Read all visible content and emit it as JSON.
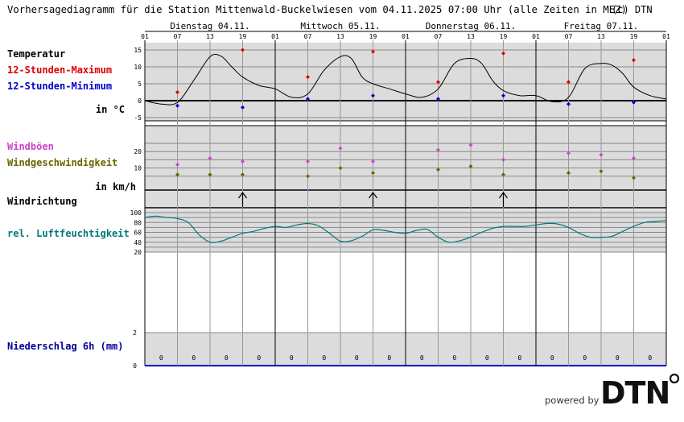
{
  "page_title": "Vorhersagediagramm für die Station Mittenwald-Buckelwiesen vom 04.11.2025 07:00 Uhr (alle Zeiten in MEZ)",
  "copyright": "(c) DTN",
  "powered_by": "powered by",
  "logo_text": "DTN",
  "colors": {
    "temp": "#000000",
    "max": "#dd0000",
    "min": "#0000cc",
    "gust": "#cc44cc",
    "wind": "#666600",
    "humidity": "#007a7a",
    "precip": "#000099",
    "panel_bg": "#dcdcdc"
  },
  "labels": {
    "temperatur": "Temperatur",
    "max": "12-Stunden-Maximum",
    "min": "12-Stunden-Minimum",
    "temp_unit": "in °C",
    "gust": "Windböen",
    "wind": "Windgeschwindigkeit",
    "wind_unit": "in km/h",
    "winddir": "Windrichtung",
    "humidity": "rel. Luftfeuchtigkeit",
    "precip": "Niederschlag 6h (mm)"
  },
  "chart_data": {
    "type": "line",
    "days": [
      "Dienstag 04.11.",
      "Mittwoch 05.11.",
      "Donnerstag 06.11.",
      "Freitag 07.11."
    ],
    "hour_ticks": [
      "01",
      "07",
      "13",
      "19",
      "01",
      "07",
      "13",
      "19",
      "01",
      "07",
      "13",
      "19",
      "01",
      "07",
      "13",
      "19",
      "01"
    ],
    "temperature": {
      "ylim": [
        -5,
        15
      ],
      "yticks": [
        "15",
        "10",
        "5",
        "0",
        "-5"
      ],
      "hourly": {
        "hours": [
          0,
          3,
          6,
          9,
          12,
          14,
          16,
          18,
          21,
          24,
          27,
          30,
          33,
          36,
          38,
          40,
          42,
          45,
          48,
          51,
          54,
          57,
          60,
          62,
          64,
          66,
          69,
          72,
          75,
          78,
          81,
          84,
          86,
          88,
          90,
          93,
          96
        ],
        "values": [
          0,
          -1,
          -0.5,
          6,
          13,
          13.2,
          10,
          7,
          4.5,
          3.5,
          1,
          2,
          9,
          13,
          12.5,
          7,
          5,
          3.5,
          2,
          1,
          3.5,
          11,
          12.5,
          11,
          6,
          3,
          1.5,
          1.5,
          -0.3,
          1,
          9.5,
          11,
          10.5,
          8,
          4,
          1.5,
          0.5
        ]
      },
      "max12h": [
        {
          "x": 6,
          "v": 2.5
        },
        {
          "x": 18,
          "v": 15
        },
        {
          "x": 30,
          "v": 7
        },
        {
          "x": 42,
          "v": 14.5
        },
        {
          "x": 54,
          "v": 5.5
        },
        {
          "x": 66,
          "v": 14
        },
        {
          "x": 78,
          "v": 5.5
        },
        {
          "x": 90,
          "v": 12
        }
      ],
      "min12h": [
        {
          "x": 6,
          "v": -1.5
        },
        {
          "x": 18,
          "v": -2
        },
        {
          "x": 30,
          "v": 0.5
        },
        {
          "x": 42,
          "v": 1.5
        },
        {
          "x": 54,
          "v": 0.5
        },
        {
          "x": 66,
          "v": 1.5
        },
        {
          "x": 78,
          "v": -1
        },
        {
          "x": 90,
          "v": -0.5
        }
      ]
    },
    "wind": {
      "ylim": [
        0,
        30
      ],
      "yticks": [
        "20",
        "10"
      ],
      "gusts": [
        {
          "x": 6,
          "v": 12
        },
        {
          "x": 12,
          "v": 16
        },
        {
          "x": 18,
          "v": 14
        },
        {
          "x": 30,
          "v": 14
        },
        {
          "x": 36,
          "v": 22
        },
        {
          "x": 42,
          "v": 14
        },
        {
          "x": 54,
          "v": 21
        },
        {
          "x": 60,
          "v": 24
        },
        {
          "x": 66,
          "v": 15
        },
        {
          "x": 78,
          "v": 19
        },
        {
          "x": 84,
          "v": 18
        },
        {
          "x": 90,
          "v": 16
        }
      ],
      "speed": [
        {
          "x": 6,
          "v": 6
        },
        {
          "x": 12,
          "v": 6
        },
        {
          "x": 18,
          "v": 6
        },
        {
          "x": 30,
          "v": 5
        },
        {
          "x": 36,
          "v": 10
        },
        {
          "x": 42,
          "v": 7
        },
        {
          "x": 54,
          "v": 9
        },
        {
          "x": 60,
          "v": 11
        },
        {
          "x": 66,
          "v": 6
        },
        {
          "x": 78,
          "v": 7
        },
        {
          "x": 84,
          "v": 8
        },
        {
          "x": 90,
          "v": 4
        }
      ]
    },
    "wind_direction": {
      "hours": [
        18,
        42,
        66
      ],
      "direction": "north"
    },
    "humidity": {
      "ylim": [
        20,
        100
      ],
      "yticks": [
        "100",
        "80",
        "60",
        "40",
        "20"
      ],
      "hours": [
        0,
        2,
        4,
        6,
        8,
        10,
        12,
        14,
        16,
        18,
        20,
        22,
        24,
        26,
        28,
        30,
        32,
        34,
        36,
        38,
        40,
        42,
        44,
        46,
        48,
        50,
        52,
        54,
        56,
        58,
        60,
        62,
        64,
        66,
        68,
        70,
        72,
        74,
        76,
        78,
        80,
        82,
        84,
        86,
        88,
        90,
        92,
        94,
        96
      ],
      "values": [
        90,
        93,
        90,
        88,
        80,
        55,
        40,
        42,
        50,
        58,
        62,
        68,
        72,
        70,
        75,
        78,
        73,
        58,
        42,
        43,
        52,
        65,
        64,
        60,
        58,
        64,
        66,
        50,
        40,
        43,
        50,
        60,
        68,
        72,
        72,
        72,
        75,
        78,
        77,
        70,
        58,
        50,
        50,
        52,
        62,
        72,
        80,
        82,
        84
      ]
    },
    "precipitation": {
      "ylim": [
        0,
        2
      ],
      "yticks": [
        "2",
        "0"
      ],
      "values": [
        "0",
        "0",
        "0",
        "0",
        "0",
        "0",
        "0",
        "0",
        "0",
        "0",
        "0",
        "0",
        "0",
        "0",
        "0",
        "0"
      ]
    }
  }
}
